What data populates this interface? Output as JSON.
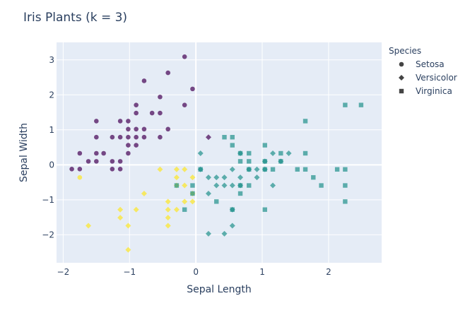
{
  "chart_data": {
    "type": "scatter",
    "title": "Iris Plants (k = 3)",
    "xlabel": "Sepal Length",
    "ylabel": "Sepal Width",
    "xlim": [
      -2.1,
      2.8
    ],
    "ylim": [
      -2.8,
      3.5
    ],
    "xticks": [
      -2,
      -1,
      0,
      1,
      2
    ],
    "yticks": [
      -2,
      -1,
      0,
      1,
      2,
      3
    ],
    "grid": true,
    "legend": {
      "title": "Species",
      "placement": "top-right outside"
    },
    "symbols": {
      "Setosa": "circle",
      "Versicolor": "diamond",
      "Virginica": "square"
    },
    "colors": {
      "cluster_0": "#440154",
      "cluster_1": "#21918c",
      "cluster_2": "#fde725"
    },
    "series": [
      {
        "name": "Setosa",
        "symbol": "circle",
        "points": [
          {
            "x": -1.87,
            "y": -0.12,
            "c": 0
          },
          {
            "x": -1.75,
            "y": -0.12,
            "c": 0
          },
          {
            "x": -1.75,
            "y": 0.33,
            "c": 0
          },
          {
            "x": -1.62,
            "y": 0.1,
            "c": 0
          },
          {
            "x": -1.5,
            "y": 0.33,
            "c": 0
          },
          {
            "x": -1.5,
            "y": 0.1,
            "c": 0
          },
          {
            "x": -1.5,
            "y": 0.79,
            "c": 0
          },
          {
            "x": -1.5,
            "y": 1.25,
            "c": 0
          },
          {
            "x": -1.39,
            "y": 0.33,
            "c": 0
          },
          {
            "x": -1.26,
            "y": 0.79,
            "c": 0
          },
          {
            "x": -1.26,
            "y": 0.1,
            "c": 0
          },
          {
            "x": -1.26,
            "y": -0.12,
            "c": 0
          },
          {
            "x": -1.14,
            "y": 1.25,
            "c": 0
          },
          {
            "x": -1.14,
            "y": 0.79,
            "c": 0
          },
          {
            "x": -1.14,
            "y": 0.1,
            "c": 0
          },
          {
            "x": -1.14,
            "y": -0.12,
            "c": 0
          },
          {
            "x": -1.02,
            "y": 1.25,
            "c": 0
          },
          {
            "x": -1.02,
            "y": 1.02,
            "c": 0
          },
          {
            "x": -1.02,
            "y": 0.79,
            "c": 0
          },
          {
            "x": -1.02,
            "y": 0.56,
            "c": 0
          },
          {
            "x": -1.02,
            "y": 0.33,
            "c": 0
          },
          {
            "x": -0.9,
            "y": 1.71,
            "c": 0
          },
          {
            "x": -0.9,
            "y": 1.48,
            "c": 0
          },
          {
            "x": -0.9,
            "y": 1.02,
            "c": 0
          },
          {
            "x": -0.9,
            "y": 0.79,
            "c": 0
          },
          {
            "x": -0.9,
            "y": 0.56,
            "c": 0
          },
          {
            "x": -0.78,
            "y": 2.4,
            "c": 0
          },
          {
            "x": -0.78,
            "y": 1.02,
            "c": 0
          },
          {
            "x": -0.78,
            "y": 0.79,
            "c": 0
          },
          {
            "x": -0.66,
            "y": 1.48,
            "c": 0
          },
          {
            "x": -0.54,
            "y": 1.94,
            "c": 0
          },
          {
            "x": -0.54,
            "y": 1.48,
            "c": 0
          },
          {
            "x": -0.54,
            "y": 0.79,
            "c": 0
          },
          {
            "x": -0.42,
            "y": 2.63,
            "c": 0
          },
          {
            "x": -0.42,
            "y": 1.02,
            "c": 0
          },
          {
            "x": -0.17,
            "y": 3.09,
            "c": 0
          },
          {
            "x": -0.17,
            "y": 1.71,
            "c": 0
          },
          {
            "x": -0.05,
            "y": 2.17,
            "c": 0
          },
          {
            "x": -1.75,
            "y": -0.36,
            "c": 2
          }
        ]
      },
      {
        "name": "Versicolor",
        "symbol": "diamond",
        "points": [
          {
            "x": -1.62,
            "y": -1.74,
            "c": 2
          },
          {
            "x": -1.14,
            "y": -1.28,
            "c": 2
          },
          {
            "x": -1.14,
            "y": -1.51,
            "c": 2
          },
          {
            "x": -1.02,
            "y": -1.74,
            "c": 2
          },
          {
            "x": -1.02,
            "y": -2.43,
            "c": 2
          },
          {
            "x": -0.9,
            "y": -1.28,
            "c": 2
          },
          {
            "x": -0.78,
            "y": -0.82,
            "c": 2
          },
          {
            "x": -0.54,
            "y": -0.13,
            "c": 2
          },
          {
            "x": -0.42,
            "y": -1.05,
            "c": 2
          },
          {
            "x": -0.42,
            "y": -1.28,
            "c": 2
          },
          {
            "x": -0.42,
            "y": -1.51,
            "c": 2
          },
          {
            "x": -0.42,
            "y": -1.74,
            "c": 2
          },
          {
            "x": -0.29,
            "y": -0.13,
            "c": 2
          },
          {
            "x": -0.29,
            "y": -0.36,
            "c": 2
          },
          {
            "x": -0.29,
            "y": -0.59,
            "c": 2
          },
          {
            "x": -0.29,
            "y": -1.28,
            "c": 2
          },
          {
            "x": -0.17,
            "y": -0.13,
            "c": 2
          },
          {
            "x": -0.17,
            "y": -0.59,
            "c": 2
          },
          {
            "x": -0.17,
            "y": -1.05,
            "c": 2
          },
          {
            "x": -0.05,
            "y": -0.36,
            "c": 2
          },
          {
            "x": -0.05,
            "y": -0.82,
            "c": 2
          },
          {
            "x": -0.05,
            "y": -1.05,
            "c": 2
          },
          {
            "x": 0.19,
            "y": 0.79,
            "c": 0
          },
          {
            "x": 0.07,
            "y": 0.33,
            "c": 1
          },
          {
            "x": 0.07,
            "y": -0.13,
            "c": 1
          },
          {
            "x": 0.19,
            "y": -0.36,
            "c": 1
          },
          {
            "x": 0.19,
            "y": -0.82,
            "c": 1
          },
          {
            "x": 0.19,
            "y": -1.97,
            "c": 1
          },
          {
            "x": 0.31,
            "y": -0.36,
            "c": 1
          },
          {
            "x": 0.31,
            "y": -0.59,
            "c": 1
          },
          {
            "x": 0.43,
            "y": -0.36,
            "c": 1
          },
          {
            "x": 0.43,
            "y": -0.59,
            "c": 1
          },
          {
            "x": 0.43,
            "y": -1.97,
            "c": 1
          },
          {
            "x": 0.55,
            "y": -0.13,
            "c": 1
          },
          {
            "x": 0.55,
            "y": -0.59,
            "c": 1
          },
          {
            "x": 0.55,
            "y": -1.28,
            "c": 1
          },
          {
            "x": 0.55,
            "y": -1.74,
            "c": 1
          },
          {
            "x": 0.67,
            "y": 0.33,
            "c": 1
          },
          {
            "x": 0.67,
            "y": -0.36,
            "c": 1
          },
          {
            "x": 0.67,
            "y": -0.59,
            "c": 1
          },
          {
            "x": 0.8,
            "y": -0.13,
            "c": 1
          },
          {
            "x": 0.92,
            "y": -0.13,
            "c": 1
          },
          {
            "x": 0.92,
            "y": -0.36,
            "c": 1
          },
          {
            "x": 1.04,
            "y": 0.1,
            "c": 1
          },
          {
            "x": 1.04,
            "y": -0.13,
            "c": 1
          },
          {
            "x": 1.16,
            "y": 0.33,
            "c": 1
          },
          {
            "x": 1.16,
            "y": -0.59,
            "c": 1
          },
          {
            "x": 1.28,
            "y": 0.1,
            "c": 1
          },
          {
            "x": 1.4,
            "y": 0.33,
            "c": 1
          }
        ]
      },
      {
        "name": "Virginica",
        "symbol": "square",
        "points": [
          {
            "x": -0.29,
            "y": -0.59,
            "c": 1
          },
          {
            "x": -0.17,
            "y": -1.28,
            "c": 1
          },
          {
            "x": -0.05,
            "y": -0.59,
            "c": 1
          },
          {
            "x": -0.05,
            "y": -0.82,
            "c": 1
          },
          {
            "x": 0.07,
            "y": -0.13,
            "c": 1
          },
          {
            "x": 0.31,
            "y": -1.05,
            "c": 1
          },
          {
            "x": 0.43,
            "y": 0.79,
            "c": 1
          },
          {
            "x": 0.55,
            "y": 0.79,
            "c": 1
          },
          {
            "x": 0.55,
            "y": 0.56,
            "c": 1
          },
          {
            "x": 0.55,
            "y": -1.28,
            "c": 1
          },
          {
            "x": 0.67,
            "y": 0.33,
            "c": 1
          },
          {
            "x": 0.67,
            "y": 0.1,
            "c": 1
          },
          {
            "x": 0.67,
            "y": -0.59,
            "c": 1
          },
          {
            "x": 0.67,
            "y": -0.82,
            "c": 1
          },
          {
            "x": 0.8,
            "y": 0.33,
            "c": 1
          },
          {
            "x": 0.8,
            "y": 0.1,
            "c": 1
          },
          {
            "x": 0.8,
            "y": -0.13,
            "c": 1
          },
          {
            "x": 0.8,
            "y": -0.59,
            "c": 1
          },
          {
            "x": 1.04,
            "y": 0.56,
            "c": 1
          },
          {
            "x": 1.04,
            "y": 0.1,
            "c": 1
          },
          {
            "x": 1.04,
            "y": -0.13,
            "c": 1
          },
          {
            "x": 1.04,
            "y": -1.28,
            "c": 1
          },
          {
            "x": 1.16,
            "y": -0.13,
            "c": 1
          },
          {
            "x": 1.28,
            "y": 0.33,
            "c": 1
          },
          {
            "x": 1.28,
            "y": 0.1,
            "c": 1
          },
          {
            "x": 1.53,
            "y": -0.13,
            "c": 1
          },
          {
            "x": 1.65,
            "y": 1.25,
            "c": 1
          },
          {
            "x": 1.65,
            "y": 0.33,
            "c": 1
          },
          {
            "x": 1.65,
            "y": -0.13,
            "c": 1
          },
          {
            "x": 1.77,
            "y": -0.36,
            "c": 1
          },
          {
            "x": 1.89,
            "y": -0.59,
            "c": 1
          },
          {
            "x": 2.13,
            "y": -0.13,
            "c": 1
          },
          {
            "x": 2.25,
            "y": 1.71,
            "c": 1
          },
          {
            "x": 2.25,
            "y": -0.13,
            "c": 1
          },
          {
            "x": 2.25,
            "y": -0.59,
            "c": 1
          },
          {
            "x": 2.25,
            "y": -1.05,
            "c": 1
          },
          {
            "x": 2.49,
            "y": 1.71,
            "c": 1
          }
        ]
      }
    ]
  }
}
